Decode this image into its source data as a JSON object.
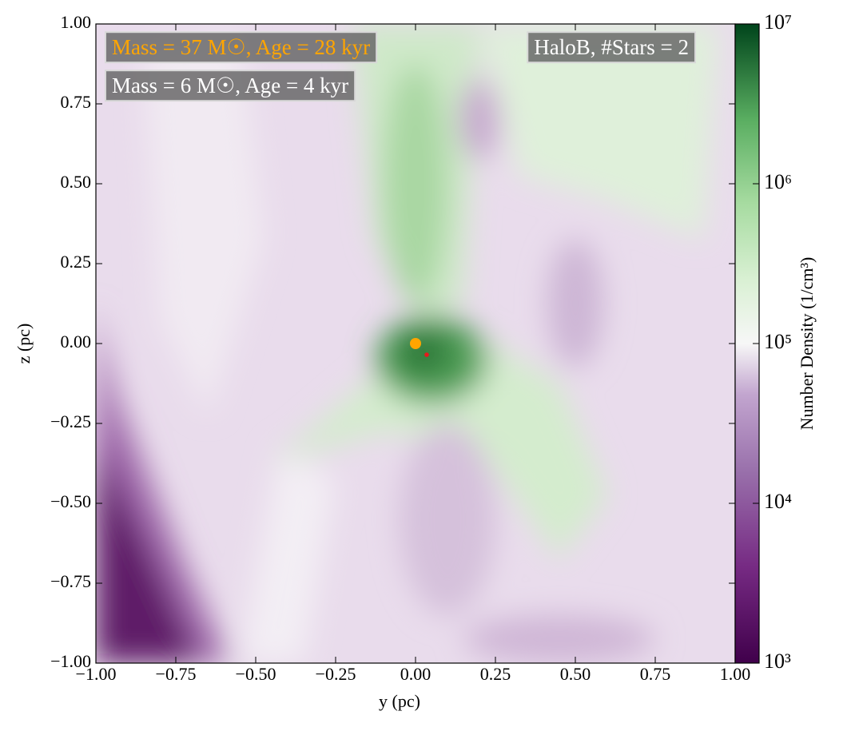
{
  "chart_data": {
    "type": "scatter",
    "xlabel": "y  (pc)",
    "ylabel": "z  (pc)",
    "colorbar_label": "Number Density  (1/cm³)",
    "annotations": [
      {
        "text": "Mass = 37 M☉, Age = 28 kyr",
        "color": "#ffa500"
      },
      {
        "text": "Mass = 6 M☉, Age = 4 kyr",
        "color": "#ffffff"
      },
      {
        "text": "HaloB, #Stars = 2",
        "color": "#ffffff"
      }
    ],
    "series": [
      {
        "color": "#ffa500",
        "x": [
          0.0
        ],
        "values": [
          0.0
        ]
      },
      {
        "color": "#e8191c",
        "x": [
          0.035
        ],
        "values": [
          -0.035
        ]
      }
    ],
    "xlim": [
      -1,
      1
    ],
    "ylim": [
      -1,
      1
    ],
    "xticks": [
      {
        "value": -1,
        "label": "−1.00"
      },
      {
        "value": -0.75,
        "label": "−0.75"
      },
      {
        "value": -0.5,
        "label": "−0.50"
      },
      {
        "value": -0.25,
        "label": "−0.25"
      },
      {
        "value": 0,
        "label": "0.00"
      },
      0.25,
      {
        "value": 0.5,
        "label": "0.50"
      },
      0.75,
      {
        "value": 1,
        "label": "1.00"
      }
    ],
    "yticks": [
      {
        "value": -1,
        "label": "−1.00"
      },
      {
        "value": -0.75,
        "label": "−0.75"
      },
      {
        "value": -0.5,
        "label": "−0.50"
      },
      {
        "value": -0.25,
        "label": "−0.25"
      },
      {
        "value": 0,
        "label": "0.00"
      },
      0.25,
      {
        "value": 0.5,
        "label": "0.50"
      },
      0.75,
      {
        "value": 1,
        "label": "1.00"
      }
    ],
    "clim": [
      1000,
      10000000
    ],
    "clog": true,
    "cticks": [
      {
        "value": 1000,
        "label": "10³"
      },
      {
        "value": 10000,
        "label": "10⁴"
      },
      {
        "value": 100000,
        "label": "10⁵"
      },
      {
        "value": 1000000,
        "label": "10⁶"
      },
      {
        "value": 10000000,
        "label": "10⁷"
      }
    ]
  }
}
